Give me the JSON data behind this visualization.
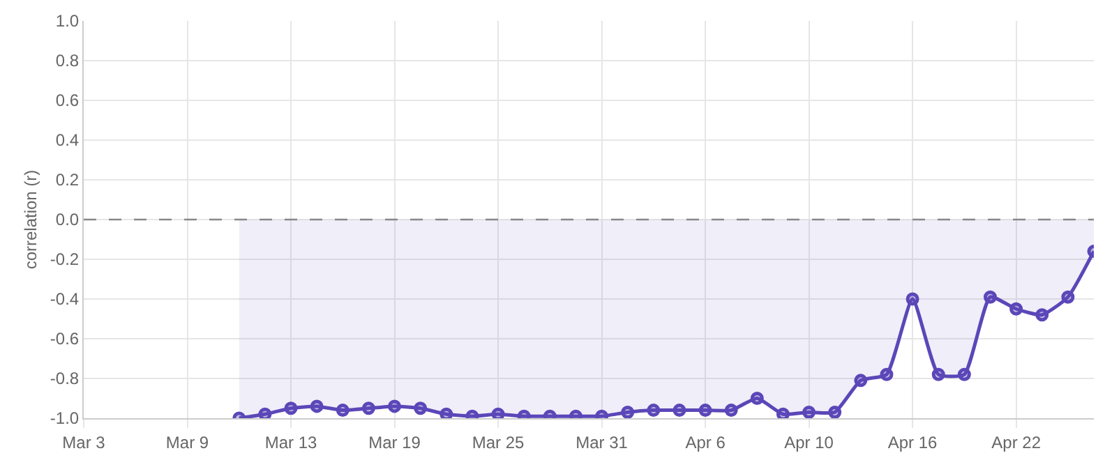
{
  "chart_data": {
    "type": "area",
    "ylabel": "correlation (r)",
    "categories": [
      "Mar 3",
      null,
      null,
      null,
      "Mar 9",
      null,
      null,
      null,
      "Mar 13",
      null,
      null,
      null,
      "Mar 19",
      null,
      null,
      null,
      "Mar 25",
      null,
      null,
      null,
      "Mar 31",
      null,
      null,
      null,
      "Apr 6",
      null,
      null,
      null,
      "Apr 10",
      null,
      null,
      null,
      "Apr 16",
      null,
      null,
      null,
      "Apr 22",
      null,
      null,
      null
    ],
    "series": [
      {
        "color": "#5b47b8",
        "values": [
          null,
          null,
          null,
          null,
          null,
          null,
          -1.0,
          -0.98,
          -0.95,
          -0.94,
          -0.96,
          -0.95,
          -0.94,
          -0.95,
          -0.98,
          -0.99,
          -0.98,
          -0.99,
          -0.99,
          -0.99,
          -0.99,
          -0.97,
          -0.96,
          -0.96,
          -0.96,
          -0.96,
          -0.9,
          -0.98,
          -0.97,
          -0.97,
          -0.81,
          -0.78,
          -0.4,
          -0.78,
          -0.78,
          -0.39,
          -0.45,
          -0.48,
          -0.39,
          -0.16
        ]
      }
    ],
    "ylim": [
      -1,
      1
    ],
    "yticks": [
      {
        "value": -1,
        "label": "-1.0"
      },
      {
        "value": -0.8,
        "label": "-0.8"
      },
      {
        "value": -0.6,
        "label": "-0.6"
      },
      {
        "value": -0.4,
        "label": "-0.4"
      },
      {
        "value": -0.2,
        "label": "-0.2"
      },
      {
        "value": 0,
        "label": "0.0"
      },
      {
        "value": 0.2,
        "label": "0.2"
      },
      {
        "value": 0.4,
        "label": "0.4"
      },
      {
        "value": 0.6,
        "label": "0.6"
      },
      {
        "value": 0.8,
        "label": "0.8"
      },
      {
        "value": 1,
        "label": "1.0"
      }
    ],
    "ref_lines": [
      {
        "axis": "y",
        "value": 0,
        "color": "#888888",
        "line_style": "dashed"
      }
    ],
    "grid": true,
    "marker": "circle",
    "line_style": "solid"
  }
}
